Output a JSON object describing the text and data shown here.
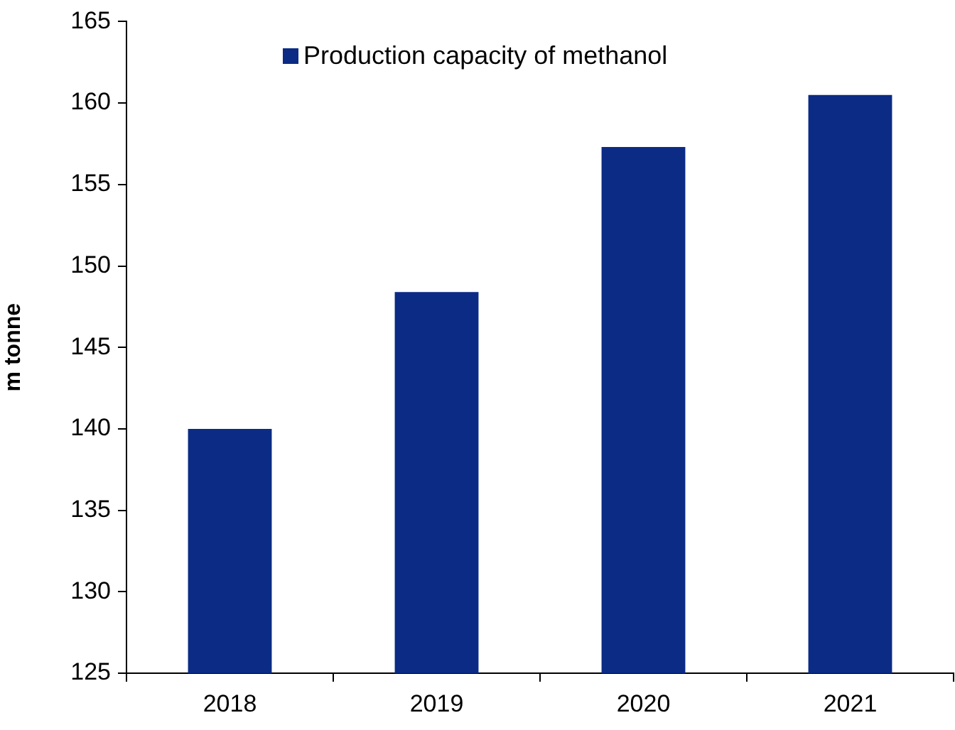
{
  "chart_data": {
    "type": "bar",
    "ylabel": "m tonne",
    "categories": [
      "2018",
      "2019",
      "2020",
      "2021"
    ],
    "series": [
      {
        "name": "Production capacity of methanol",
        "color": "#0b2b84",
        "values": [
          140,
          148.4,
          157.3,
          160.5
        ]
      }
    ],
    "ylim": [
      125,
      165
    ],
    "yticks": [
      125,
      130,
      135,
      140,
      145,
      150,
      155,
      160,
      165
    ],
    "grid": false,
    "legend": "top"
  }
}
